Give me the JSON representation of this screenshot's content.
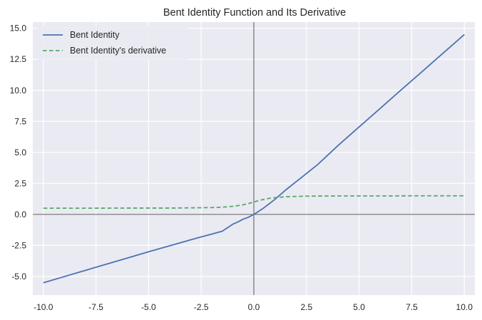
{
  "chart_data": {
    "type": "line",
    "title": "Bent Identity Function and Its Derivative",
    "xlabel": "",
    "ylabel": "",
    "xlim": [
      -10.5,
      10.5
    ],
    "ylim": [
      -6.5,
      15.5
    ],
    "grid": true,
    "legend_position": "upper-left",
    "x_ticks": [
      -10.0,
      -7.5,
      -5.0,
      -2.5,
      0.0,
      2.5,
      5.0,
      7.5,
      10.0
    ],
    "x_tick_labels": [
      "-10.0",
      "-7.5",
      "-5.0",
      "-2.5",
      "0.0",
      "2.5",
      "5.0",
      "7.5",
      "10.0"
    ],
    "y_ticks": [
      -5.0,
      -2.5,
      0.0,
      2.5,
      5.0,
      7.5,
      10.0,
      12.5,
      15.0
    ],
    "y_tick_labels": [
      "-5.0",
      "-2.5",
      "0.0",
      "2.5",
      "5.0",
      "7.5",
      "10.0",
      "12.5",
      "15.0"
    ],
    "reference_lines": {
      "horizontal_at_y": 0,
      "vertical_at_x": 0,
      "color": "#262626"
    },
    "series": [
      {
        "name": "Bent Identity",
        "style": "solid",
        "color": "#4c72b0",
        "x": [
          -10,
          -9,
          -8,
          -7,
          -6,
          -5,
          -4,
          -3,
          -2.5,
          -2,
          -1.5,
          -1,
          -0.75,
          -0.5,
          -0.25,
          0,
          0.25,
          0.5,
          0.75,
          1,
          1.5,
          2,
          2.5,
          3,
          4,
          5,
          6,
          7,
          8,
          9,
          10
        ],
        "y": [
          -5.51,
          -5.01,
          -4.51,
          -4.01,
          -3.51,
          -3.01,
          -2.53,
          -2.05,
          -1.81,
          -1.59,
          -1.35,
          -0.79,
          -0.6,
          -0.38,
          -0.22,
          0.0,
          0.27,
          0.56,
          0.88,
          1.21,
          1.95,
          2.62,
          3.3,
          3.97,
          5.55,
          7.05,
          8.54,
          10.04,
          11.52,
          13.01,
          14.5
        ]
      },
      {
        "name": "Bent Identity's derivative",
        "style": "dashed",
        "color": "#55a868",
        "x": [
          -10,
          -8,
          -6,
          -4,
          -3,
          -2.5,
          -2,
          -1.5,
          -1,
          -0.75,
          -0.5,
          -0.25,
          0,
          0.25,
          0.5,
          0.75,
          1,
          1.5,
          2,
          2.5,
          3,
          4,
          6,
          8,
          10
        ],
        "y": [
          0.5,
          0.5,
          0.51,
          0.51,
          0.53,
          0.54,
          0.55,
          0.58,
          0.65,
          0.71,
          0.78,
          0.88,
          1.0,
          1.12,
          1.22,
          1.3,
          1.35,
          1.42,
          1.45,
          1.47,
          1.48,
          1.49,
          1.49,
          1.5,
          1.5
        ]
      }
    ]
  }
}
